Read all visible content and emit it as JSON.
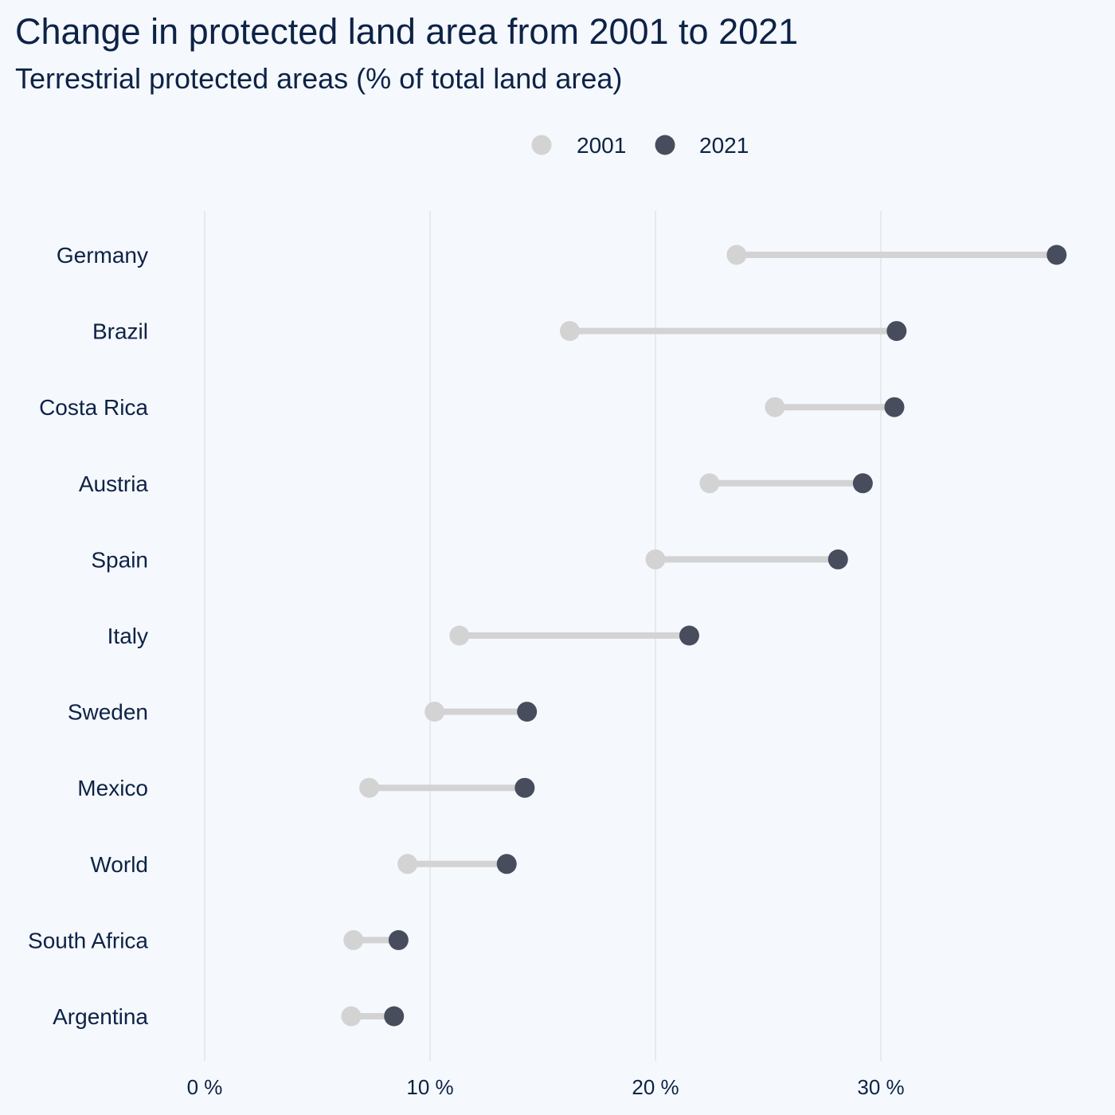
{
  "title": "Change in protected land area from 2001 to 2021",
  "subtitle": "Terrestrial protected areas (% of total land area)",
  "chart_data": {
    "type": "dumbbell",
    "title": "Change in protected land area from 2001 to 2021",
    "subtitle": "Terrestrial protected areas (% of total land area)",
    "xlabel": "",
    "ylabel": "",
    "xlim": [
      -1.3,
      39.2
    ],
    "xticks": [
      0,
      10,
      20,
      30
    ],
    "xtick_labels": [
      "0 %",
      "10 %",
      "20 %",
      "30 %"
    ],
    "grid": "vertical major gridlines",
    "legend": "top-center",
    "categories": [
      "Germany",
      "Brazil",
      "Costa Rica",
      "Austria",
      "Spain",
      "Italy",
      "Sweden",
      "Mexico",
      "World",
      "South Africa",
      "Argentina"
    ],
    "series": [
      {
        "name": "2001",
        "color": "#d3d3d3",
        "values": [
          23.6,
          16.2,
          25.3,
          22.4,
          20.0,
          11.3,
          10.2,
          7.3,
          9.0,
          6.6,
          6.5
        ]
      },
      {
        "name": "2021",
        "color": "#474d5c",
        "values": [
          37.8,
          30.7,
          30.6,
          29.2,
          28.1,
          21.5,
          14.3,
          14.2,
          13.4,
          8.6,
          8.4
        ]
      }
    ],
    "connector_color": "#d3d3d3",
    "grid_color": "#dde1e6"
  }
}
